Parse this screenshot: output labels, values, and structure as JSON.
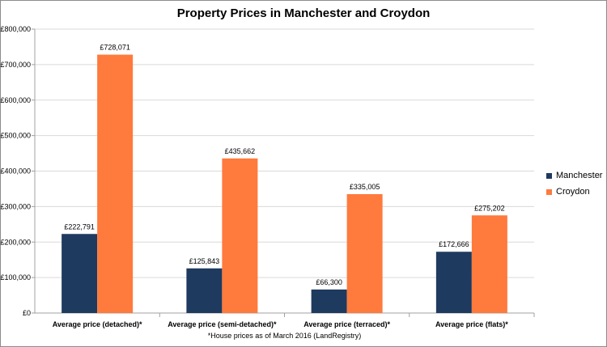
{
  "chart_data": {
    "type": "bar",
    "title": "Property Prices in Manchester and Croydon",
    "categories": [
      "Average price (detached)*",
      "Average price (semi-detached)*",
      "Average price (terraced)*",
      "Average price (flats)*"
    ],
    "series": [
      {
        "name": "Manchester",
        "color": "#1f3a5f",
        "values": [
          222791,
          125843,
          66300,
          172666
        ],
        "labels": [
          "£222,791",
          "£125,843",
          "£66,300",
          "£172,666"
        ]
      },
      {
        "name": "Croydon",
        "color": "#ff7a3d",
        "values": [
          728071,
          435662,
          335005,
          275202
        ],
        "labels": [
          "£728,071",
          "£435,662",
          "£335,005",
          "£275,202"
        ]
      }
    ],
    "ylim": [
      0,
      800000
    ],
    "yticks": [
      "£0",
      "£100,000",
      "£200,000",
      "£300,000",
      "£400,000",
      "£500,000",
      "£600,000",
      "£700,000",
      "£800,000"
    ],
    "grid": true,
    "legend_position": "right",
    "footnote": "*House prices as of March 2016 (LandRegistry)"
  }
}
